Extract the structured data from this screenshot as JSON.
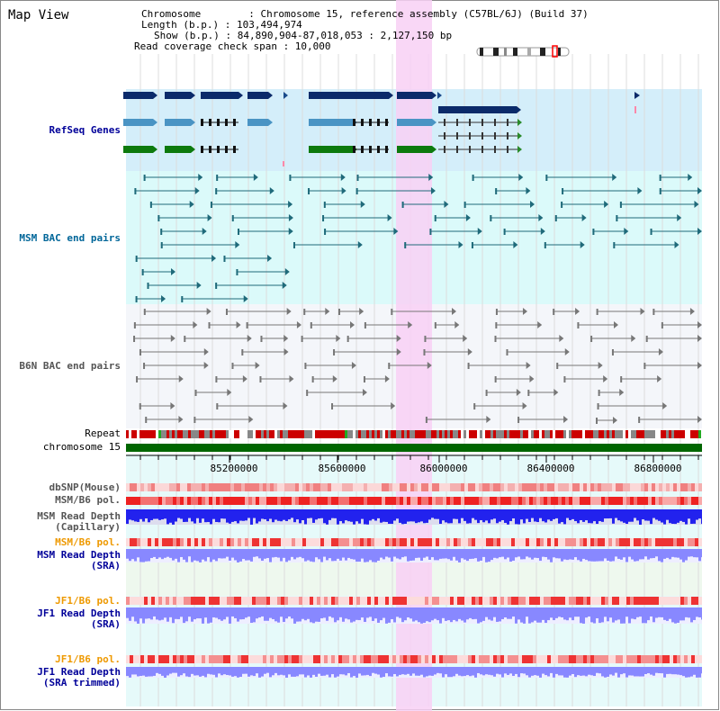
{
  "title": "Map View",
  "info": {
    "chromosome": "Chromosome        : Chromosome 15, reference assembly (C57BL/6J) (Build 37)",
    "length": "Length (b.p.) : 103,494,974",
    "show": "Show (b.p.) : 84,890,904-87,018,053 : 2,127,150 bp",
    "span": "Read coverage check span : 10,000"
  },
  "tracks": {
    "refseq": "RefSeq Genes",
    "msm_bac": "MSM BAC end pairs",
    "b6n_bac": "B6N BAC end pairs",
    "repeat": "Repeat",
    "chromosome": "chromosome 15",
    "dbsnp": "dbSNP(Mouse)",
    "msm_pol1": "MSM/B6 pol.",
    "msm_depth_cap_1": "MSM Read Depth",
    "msm_depth_cap_2": "(Capillary)",
    "msm_pol2": "MSM/B6 pol.",
    "msm_depth_sra_1": "MSM Read Depth",
    "msm_depth_sra_2": "(SRA)",
    "jf1_pol1": "JF1/B6 pol.",
    "jf1_depth_sra_1": "JF1 Read Depth",
    "jf1_depth_sra_2": "(SRA)",
    "jf1_pol2": "JF1/B6 pol.",
    "jf1_depth_trim_1": "JF1 Read Depth",
    "jf1_depth_trim_2": "(SRA trimmed)"
  },
  "axis": {
    "ticks": [
      "85200000",
      "85600000",
      "86000000",
      "86400000",
      "86800000"
    ]
  },
  "colors": {
    "refseq_bg": "#d4eefa",
    "bac_bg": "#dbfafa",
    "b6n_bg": "#f4f6fa",
    "highlight": "#f8d0f4",
    "msm_gene": "#1f6a7a",
    "b6n_line": "#777777",
    "chrom_bar": "#006600",
    "depth_blue": "#2222ee",
    "depth_light": "#8888ff",
    "pol_red": "#ee2222",
    "label_orange": "#ee9900",
    "label_navy": "#000099"
  }
}
